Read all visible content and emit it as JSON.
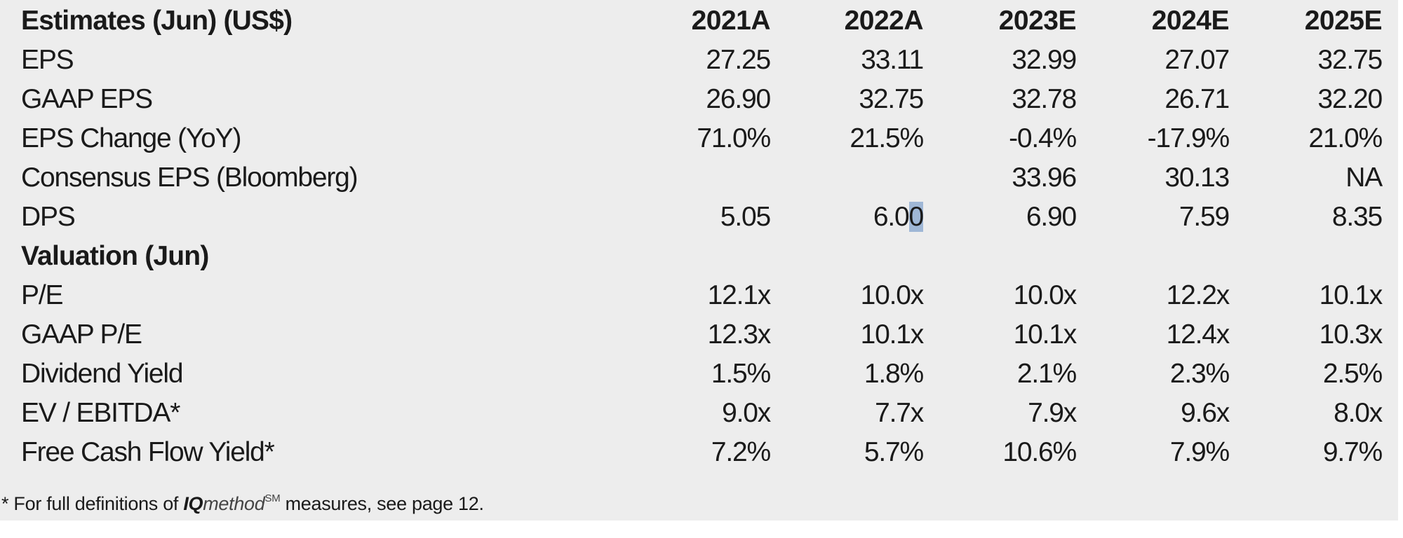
{
  "header": {
    "title": "Estimates (Jun) (US$)",
    "years": [
      "2021A",
      "2022A",
      "2023E",
      "2024E",
      "2025E"
    ]
  },
  "estimates": [
    {
      "label": "EPS",
      "values": [
        "27.25",
        "33.11",
        "32.99",
        "27.07",
        "32.75"
      ]
    },
    {
      "label": "GAAP EPS",
      "values": [
        "26.90",
        "32.75",
        "32.78",
        "26.71",
        "32.20"
      ]
    },
    {
      "label": "EPS Change (YoY)",
      "values": [
        "71.0%",
        "21.5%",
        "-0.4%",
        "-17.9%",
        "21.0%"
      ]
    },
    {
      "label": "Consensus EPS (Bloomberg)",
      "values": [
        "",
        "",
        "33.96",
        "30.13",
        "NA"
      ]
    },
    {
      "label": "DPS",
      "values": [
        "5.05",
        "6.00",
        "6.90",
        "7.59",
        "8.35"
      ]
    }
  ],
  "dps_2022_parts": {
    "before": "6.0",
    "selected": "0"
  },
  "valuation_header": "Valuation (Jun)",
  "valuation": [
    {
      "label": "P/E",
      "values": [
        "12.1x",
        "10.0x",
        "10.0x",
        "12.2x",
        "10.1x"
      ]
    },
    {
      "label": "GAAP P/E",
      "values": [
        "12.3x",
        "10.1x",
        "10.1x",
        "12.4x",
        "10.3x"
      ]
    },
    {
      "label": "Dividend Yield",
      "values": [
        "1.5%",
        "1.8%",
        "2.1%",
        "2.3%",
        "2.5%"
      ]
    },
    {
      "label": "EV / EBITDA*",
      "values": [
        "9.0x",
        "7.7x",
        "7.9x",
        "9.6x",
        "8.0x"
      ]
    },
    {
      "label": "Free Cash Flow Yield*",
      "values": [
        "7.2%",
        "5.7%",
        "10.6%",
        "7.9%",
        "9.7%"
      ]
    }
  ],
  "footnote": {
    "prefix": "* For  full definitions of ",
    "iq": "IQ",
    "method": "method",
    "sm": "SM",
    "suffix": " measures, see page 12."
  },
  "colors": {
    "panel_bg": "#ededed",
    "selection_highlight": "#9fb7d6"
  }
}
